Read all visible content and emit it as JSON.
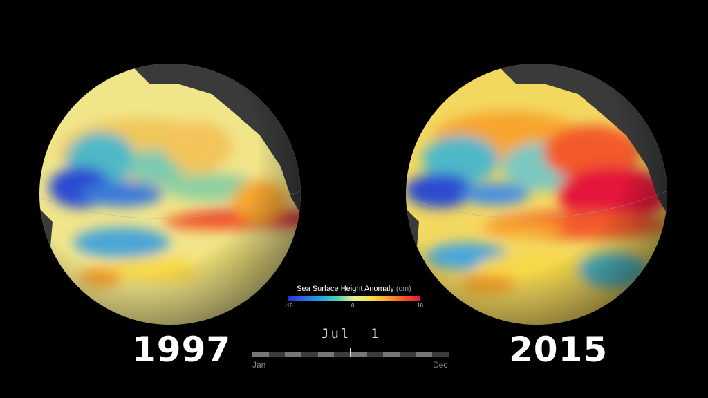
{
  "years": {
    "left": "1997",
    "right": "2015"
  },
  "legend": {
    "title": "Sea Surface Height Anomaly",
    "unit": "(cm)",
    "min": "-18",
    "mid": "0",
    "max": "18",
    "colors": [
      "#2b2fd6",
      "#2a6ee0",
      "#1fa8e0",
      "#4dd2b0",
      "#e8f09a",
      "#f6e04a",
      "#f7a52e",
      "#f25a2a",
      "#e5193a"
    ]
  },
  "date": {
    "label": "Jul  1"
  },
  "timeline": {
    "start": "Jan",
    "end": "Dec",
    "progress": 0.5
  }
}
